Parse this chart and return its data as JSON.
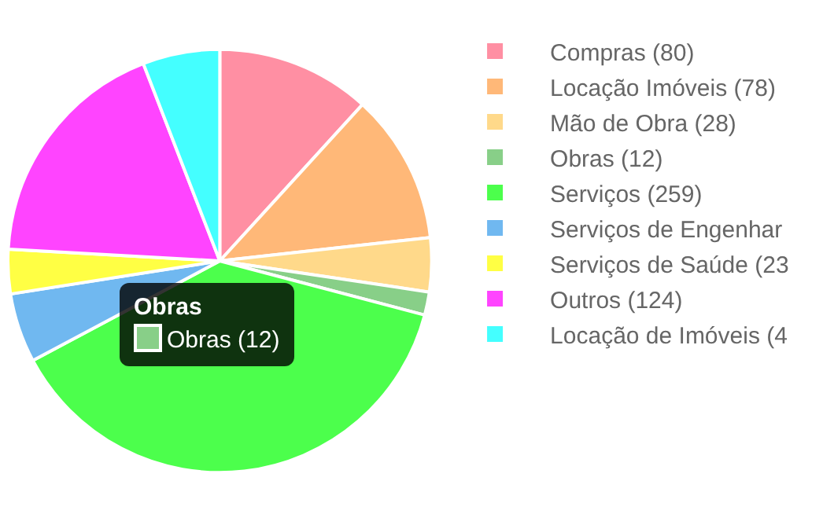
{
  "chart_data": {
    "type": "pie",
    "categories": [
      "Compras (80)",
      "Locação Imóveis (78)",
      "Mão de Obra (28)",
      "Obras (12)",
      "Serviços (259)",
      "Serviços de Engenhar",
      "Serviços de Saúde (23",
      "Outros (124)",
      "Locação de Imóveis (4"
    ],
    "values": [
      80,
      78,
      28,
      12,
      259,
      36,
      23,
      124,
      40
    ],
    "colors": [
      "#ff8fa3",
      "#ffb878",
      "#ffd98a",
      "#88cf88",
      "#4cff4c",
      "#70b8f0",
      "#ffff44",
      "#ff44ff",
      "#44ffff"
    ],
    "legend": "right",
    "annotations": [
      "Obras",
      "Obras (12)"
    ]
  }
}
